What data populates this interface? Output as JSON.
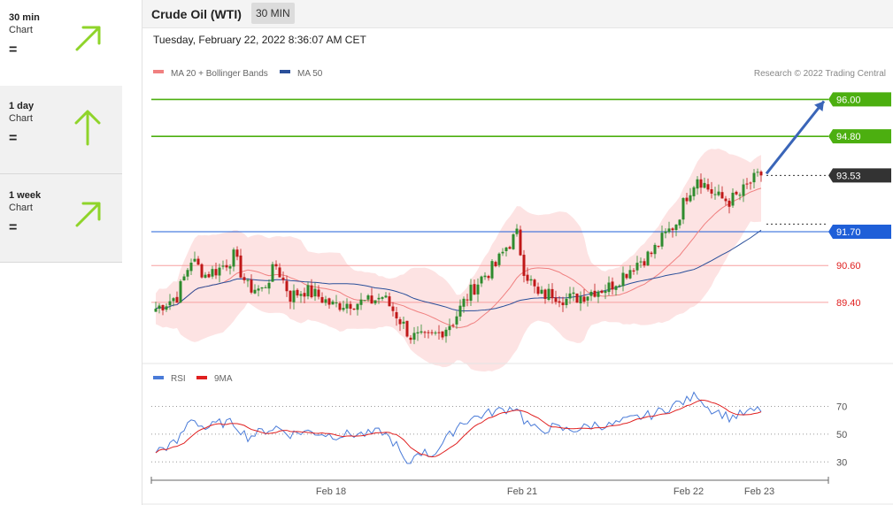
{
  "sidebar": {
    "items": [
      {
        "name": "30 min",
        "sub": "Chart",
        "signal": "=",
        "arrow": "up-right-arrow-icon"
      },
      {
        "name": "1 day",
        "sub": "Chart",
        "signal": "=",
        "arrow": "up-arrow-icon"
      },
      {
        "name": "1 week",
        "sub": "Chart",
        "signal": "=",
        "arrow": "up-right-arrow-icon"
      }
    ]
  },
  "header": {
    "title": "Crude Oil (WTI)",
    "timeframe": "30 MIN"
  },
  "timestamp": "Tuesday, February 22, 2022 8:36:07 AM CET",
  "colors": {
    "green": "#4caf10",
    "blue": "#1f5fd8",
    "red": "#e02020",
    "bollinger": "#f8a0a0",
    "ma50": "#2a4f9a",
    "arrow": "#3a65b8",
    "sidebar_arrow": "#8fd42a"
  },
  "chart_data": {
    "type": "candlestick",
    "legend": [
      {
        "label": "MA 20 + Bollinger Bands",
        "color": "#f08080"
      },
      {
        "label": "MA 50",
        "color": "#2a4f9a"
      }
    ],
    "source": "Research © 2022 Trading Central",
    "ylim": [
      87.5,
      96.3
    ],
    "levels": [
      {
        "value": 96.0,
        "label": "96.00",
        "kind": "target"
      },
      {
        "value": 94.8,
        "label": "94.80",
        "kind": "target"
      },
      {
        "value": 93.53,
        "label": "93.53",
        "kind": "last"
      },
      {
        "value": 91.7,
        "label": "91.70",
        "kind": "pivot"
      },
      {
        "value": 90.6,
        "label": "90.60",
        "kind": "support"
      },
      {
        "value": 89.4,
        "label": "89.40",
        "kind": "support"
      }
    ],
    "x_ticks": [
      "Feb 18",
      "Feb 21",
      "Feb 22",
      "Feb 23"
    ],
    "anchors": [
      {
        "i": 0,
        "c": 89.2
      },
      {
        "i": 6,
        "c": 89.6
      },
      {
        "i": 10,
        "c": 90.8
      },
      {
        "i": 14,
        "c": 90.3
      },
      {
        "i": 18,
        "c": 90.5
      },
      {
        "i": 22,
        "c": 90.9
      },
      {
        "i": 26,
        "c": 89.9
      },
      {
        "i": 30,
        "c": 89.8
      },
      {
        "i": 34,
        "c": 90.6
      },
      {
        "i": 38,
        "c": 89.6
      },
      {
        "i": 42,
        "c": 89.8
      },
      {
        "i": 46,
        "c": 89.6
      },
      {
        "i": 50,
        "c": 89.3
      },
      {
        "i": 55,
        "c": 89.4
      },
      {
        "i": 60,
        "c": 89.4
      },
      {
        "i": 64,
        "c": 89.6
      },
      {
        "i": 68,
        "c": 89.0
      },
      {
        "i": 72,
        "c": 88.3
      },
      {
        "i": 76,
        "c": 88.2
      },
      {
        "i": 80,
        "c": 88.4
      },
      {
        "i": 84,
        "c": 88.8
      },
      {
        "i": 88,
        "c": 89.6
      },
      {
        "i": 92,
        "c": 90.2
      },
      {
        "i": 96,
        "c": 90.6
      },
      {
        "i": 99,
        "c": 91.2
      },
      {
        "i": 102,
        "c": 91.6
      },
      {
        "i": 104,
        "c": 90.5
      },
      {
        "i": 108,
        "c": 89.6
      },
      {
        "i": 112,
        "c": 89.7
      },
      {
        "i": 116,
        "c": 89.5
      },
      {
        "i": 120,
        "c": 89.6
      },
      {
        "i": 124,
        "c": 89.8
      },
      {
        "i": 128,
        "c": 89.9
      },
      {
        "i": 132,
        "c": 90.3
      },
      {
        "i": 136,
        "c": 90.7
      },
      {
        "i": 140,
        "c": 91.0
      },
      {
        "i": 144,
        "c": 91.6
      },
      {
        "i": 147,
        "c": 92.0
      },
      {
        "i": 150,
        "c": 92.9
      },
      {
        "i": 153,
        "c": 93.5
      },
      {
        "i": 156,
        "c": 93.1
      },
      {
        "i": 159,
        "c": 92.8
      },
      {
        "i": 162,
        "c": 92.7
      },
      {
        "i": 165,
        "c": 92.9
      },
      {
        "i": 168,
        "c": 93.3
      },
      {
        "i": 171,
        "c": 93.53
      }
    ],
    "rsi": {
      "legend": [
        {
          "label": "RSI",
          "color": "#4a7bd8"
        },
        {
          "label": "9MA",
          "color": "#e02020"
        }
      ],
      "ylim": [
        20,
        85
      ],
      "ticks": [
        30,
        50,
        70
      ],
      "anchors": [
        {
          "i": 0,
          "v": 38
        },
        {
          "i": 6,
          "v": 44
        },
        {
          "i": 10,
          "v": 62
        },
        {
          "i": 14,
          "v": 54
        },
        {
          "i": 18,
          "v": 58
        },
        {
          "i": 22,
          "v": 58
        },
        {
          "i": 26,
          "v": 48
        },
        {
          "i": 30,
          "v": 52
        },
        {
          "i": 34,
          "v": 55
        },
        {
          "i": 38,
          "v": 50
        },
        {
          "i": 42,
          "v": 52
        },
        {
          "i": 46,
          "v": 51
        },
        {
          "i": 50,
          "v": 49
        },
        {
          "i": 55,
          "v": 50
        },
        {
          "i": 60,
          "v": 50
        },
        {
          "i": 64,
          "v": 52
        },
        {
          "i": 68,
          "v": 42
        },
        {
          "i": 71,
          "v": 26
        },
        {
          "i": 74,
          "v": 38
        },
        {
          "i": 78,
          "v": 35
        },
        {
          "i": 82,
          "v": 46
        },
        {
          "i": 86,
          "v": 58
        },
        {
          "i": 90,
          "v": 62
        },
        {
          "i": 95,
          "v": 66
        },
        {
          "i": 99,
          "v": 68
        },
        {
          "i": 102,
          "v": 70
        },
        {
          "i": 104,
          "v": 60
        },
        {
          "i": 108,
          "v": 52
        },
        {
          "i": 112,
          "v": 55
        },
        {
          "i": 116,
          "v": 53
        },
        {
          "i": 120,
          "v": 54
        },
        {
          "i": 124,
          "v": 57
        },
        {
          "i": 128,
          "v": 56
        },
        {
          "i": 132,
          "v": 59
        },
        {
          "i": 136,
          "v": 62
        },
        {
          "i": 140,
          "v": 64
        },
        {
          "i": 144,
          "v": 68
        },
        {
          "i": 147,
          "v": 72
        },
        {
          "i": 150,
          "v": 74
        },
        {
          "i": 153,
          "v": 79
        },
        {
          "i": 156,
          "v": 69
        },
        {
          "i": 159,
          "v": 66
        },
        {
          "i": 162,
          "v": 62
        },
        {
          "i": 165,
          "v": 64
        },
        {
          "i": 168,
          "v": 66
        },
        {
          "i": 171,
          "v": 68
        }
      ]
    }
  }
}
